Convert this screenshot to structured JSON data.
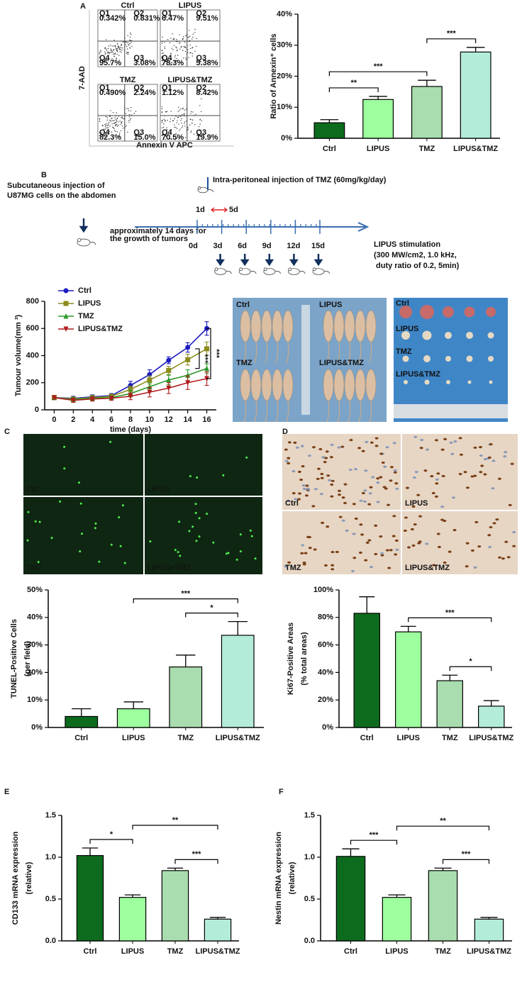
{
  "panel_labels": [
    "A",
    "B",
    "C",
    "D",
    "E",
    "F"
  ],
  "flow_cytometry": {
    "y_label": "7-AAD",
    "x_label": "Annexin V APC",
    "plots": [
      {
        "title": "Ctrl",
        "quadrants": [
          {
            "name": "Q1",
            "value": "0.342%"
          },
          {
            "name": "Q2",
            "value": "0.831%"
          },
          {
            "name": "Q4",
            "value": "95.7%"
          },
          {
            "name": "Q3",
            "value": "3.08%"
          }
        ]
      },
      {
        "title": "LIPUS",
        "quadrants": [
          {
            "name": "Q1",
            "value": "6.47%"
          },
          {
            "name": "Q2",
            "value": "9.51%"
          },
          {
            "name": "Q4",
            "value": "78.3%"
          },
          {
            "name": "Q3",
            "value": "5.38%"
          }
        ]
      },
      {
        "title": "TMZ",
        "quadrants": [
          {
            "name": "Q1",
            "value": "0.490%"
          },
          {
            "name": "Q2",
            "value": "2.24%"
          },
          {
            "name": "Q4",
            "value": "82.3%"
          },
          {
            "name": "Q3",
            "value": "15.0%"
          }
        ]
      },
      {
        "title": "LIPUS&TMZ",
        "quadrants": [
          {
            "name": "Q1",
            "value": "1.12%"
          },
          {
            "name": "Q2",
            "value": "8.42%"
          },
          {
            "name": "Q4",
            "value": "70.5%"
          },
          {
            "name": "Q3",
            "value": "19.9%"
          }
        ]
      }
    ]
  },
  "timeline": {
    "tmz_injection": "Intra-peritoneal injection of TMZ (60mg/kg/day)",
    "cell_injection": [
      "Subcutaneous injection of",
      "U87MG cells on the abdomen"
    ],
    "tmz_start": "1d",
    "tmz_end": "5d",
    "growth_note": [
      "approximately 14 days for",
      "the growth of tumors"
    ],
    "days": [
      "0d",
      "3d",
      "6d",
      "9d",
      "12d",
      "15d"
    ],
    "lipus_note": [
      "LIPUS stimulation",
      "(300 MW/cm2, 1.0 kHz,",
      "duty ratio of 0.2, 5min)"
    ]
  },
  "photos": {
    "mice_labels": [
      "Ctrl",
      "LIPUS",
      "TMZ",
      "LIPUS&TMZ"
    ],
    "tumor_labels": [
      "Ctrl",
      "LIPUS",
      "TMZ",
      "LIPUS&TMZ"
    ]
  },
  "tunel_images": [
    "Ctrl",
    "LIPUS",
    "TMZ",
    "LIPUS+TMZ"
  ],
  "ki67_images": [
    "Ctrl",
    "LIPUS",
    "TMZ",
    "LIPUS&TMZ"
  ],
  "chart_data": [
    {
      "type": "bar",
      "y_label": [
        "Ratio of Annexin⁺ cells"
      ],
      "categories": [
        "Ctrl",
        "LIPUS",
        "TMZ",
        "LIPUS&TMZ"
      ],
      "values": [
        5,
        12.5,
        16.7,
        27.8
      ],
      "errors": [
        1,
        1,
        2,
        1.5
      ],
      "colors": [
        "#0d6b1e",
        "#9dff9d",
        "#a9dcae",
        "#b3ecd9"
      ],
      "ylim": [
        0,
        40
      ],
      "yticks": [
        {
          "value": 0,
          "label": "0%"
        },
        {
          "value": 10,
          "label": "10%"
        },
        {
          "value": 20,
          "label": "20%"
        },
        {
          "value": 30,
          "label": "30%"
        },
        {
          "value": 40,
          "label": "40%"
        }
      ],
      "comparisons": [
        {
          "groups": [
            "Ctrl",
            "LIPUS"
          ],
          "label": "**"
        },
        {
          "groups": [
            "Ctrl",
            "TMZ"
          ],
          "label": "***"
        },
        {
          "groups": [
            "TMZ",
            "LIPUS&TMZ"
          ],
          "label": "***"
        }
      ]
    },
    {
      "type": "line",
      "y_label": "Tumour volume(mm ³)",
      "x_label": "time (days)",
      "x": [
        0,
        2,
        4,
        6,
        8,
        10,
        12,
        14,
        16
      ],
      "xlim": [
        -1,
        17
      ],
      "xticks": [
        0,
        2,
        4,
        6,
        8,
        10,
        12,
        14,
        16
      ],
      "ylim": [
        0,
        800
      ],
      "yticks": [
        0,
        200,
        400,
        600,
        800
      ],
      "series": [
        {
          "name": "Ctrl",
          "color": "#1c1cc0",
          "marker": "circle",
          "values": [
            90,
            85,
            95,
            105,
            180,
            260,
            365,
            460,
            600
          ],
          "errors": [
            12,
            15,
            15,
            15,
            30,
            35,
            25,
            35,
            50
          ]
        },
        {
          "name": "LIPUS",
          "color": "#8c8c1c",
          "marker": "square",
          "values": [
            90,
            80,
            90,
            100,
            150,
            220,
            290,
            370,
            450
          ],
          "errors": [
            12,
            15,
            15,
            15,
            25,
            30,
            30,
            40,
            50
          ]
        },
        {
          "name": "TMZ",
          "color": "#2a9a2a",
          "marker": "triangle",
          "values": [
            90,
            75,
            85,
            90,
            120,
            170,
            220,
            255,
            305
          ],
          "errors": [
            12,
            15,
            15,
            15,
            25,
            30,
            35,
            40,
            35
          ]
        },
        {
          "name": "LIPUS&TMZ",
          "color": "#b01c1c",
          "marker": "triangle-down",
          "values": [
            90,
            70,
            80,
            85,
            100,
            130,
            160,
            200,
            230
          ],
          "errors": [
            12,
            15,
            15,
            15,
            25,
            35,
            40,
            50,
            50
          ]
        }
      ],
      "annotations": [
        {
          "groups": [
            "Ctrl",
            "LIPUS&TMZ"
          ],
          "label": "***"
        },
        {
          "groups": [
            "LIPUS",
            "TMZ"
          ],
          "label": "***"
        }
      ]
    },
    {
      "type": "bar",
      "y_label": [
        "TUNEL-Positive Cells",
        "(per field)"
      ],
      "categories": [
        "Ctrl",
        "LIPUS",
        "TMZ",
        "LIPUS&TMZ"
      ],
      "values": [
        4,
        6.8,
        22,
        33.5
      ],
      "errors": [
        2.8,
        2.5,
        4.3,
        5
      ],
      "colors": [
        "#0d6b1e",
        "#9dff9d",
        "#a9dcae",
        "#b3ecd9"
      ],
      "ylim": [
        0,
        50
      ],
      "yticks": [
        {
          "value": 0,
          "label": "0%"
        },
        {
          "value": 10,
          "label": "10%"
        },
        {
          "value": 20,
          "label": "20%"
        },
        {
          "value": 30,
          "label": "30%"
        },
        {
          "value": 40,
          "label": "40%"
        },
        {
          "value": 50,
          "label": "50%"
        }
      ],
      "comparisons": [
        {
          "groups": [
            "TMZ",
            "LIPUS&TMZ"
          ],
          "label": "*"
        },
        {
          "groups": [
            "LIPUS",
            "LIPUS&TMZ"
          ],
          "label": "***"
        }
      ]
    },
    {
      "type": "bar",
      "y_label": [
        "Ki67-Positive Areas",
        "(% total areas)"
      ],
      "categories": [
        "Ctrl",
        "LIPUS",
        "TMZ",
        "LIPUS&TMZ"
      ],
      "values": [
        83,
        69.5,
        34,
        15.5
      ],
      "errors": [
        12,
        4,
        4,
        4
      ],
      "colors": [
        "#0d6b1e",
        "#9dff9d",
        "#a9dcae",
        "#b3ecd9"
      ],
      "ylim": [
        0,
        100
      ],
      "yticks": [
        {
          "value": 0,
          "label": "0%"
        },
        {
          "value": 20,
          "label": "20%"
        },
        {
          "value": 40,
          "label": "40%"
        },
        {
          "value": 60,
          "label": "60%"
        },
        {
          "value": 80,
          "label": "80%"
        },
        {
          "value": 100,
          "label": "100%"
        }
      ],
      "comparisons": [
        {
          "groups": [
            "TMZ",
            "LIPUS&TMZ"
          ],
          "label": "*"
        },
        {
          "groups": [
            "LIPUS",
            "LIPUS&TMZ"
          ],
          "label": "***"
        }
      ]
    },
    {
      "type": "bar",
      "y_label": [
        "CD133 mRNA expression",
        "(relative)"
      ],
      "categories": [
        "Ctrl",
        "LIPUS",
        "TMZ",
        "LIPUS&TMZ"
      ],
      "values": [
        1.02,
        0.52,
        0.84,
        0.26
      ],
      "errors": [
        0.09,
        0.03,
        0.03,
        0.02
      ],
      "colors": [
        "#0d6b1e",
        "#9dff9d",
        "#a9dcae",
        "#b3ecd9"
      ],
      "ylim": [
        0,
        1.5
      ],
      "yticks": [
        {
          "value": 0,
          "label": "0.0"
        },
        0.5,
        {
          "value": 1,
          "label": "1.0"
        },
        1.5
      ],
      "comparisons": [
        {
          "groups": [
            "Ctrl",
            "LIPUS"
          ],
          "label": "*"
        },
        {
          "groups": [
            "TMZ",
            "LIPUS&TMZ"
          ],
          "label": "***"
        },
        {
          "groups": [
            "LIPUS",
            "LIPUS&TMZ"
          ],
          "label": "**"
        }
      ]
    },
    {
      "type": "bar",
      "y_label": [
        "Nestin mRNA expression",
        "(relative)"
      ],
      "categories": [
        "Ctrl",
        "LIPUS",
        "TMZ",
        "LIPUS&TMZ"
      ],
      "values": [
        1.01,
        0.52,
        0.84,
        0.26
      ],
      "errors": [
        0.09,
        0.03,
        0.03,
        0.02
      ],
      "colors": [
        "#0d6b1e",
        "#9dff9d",
        "#a9dcae",
        "#b3ecd9"
      ],
      "ylim": [
        0,
        1.5
      ],
      "yticks": [
        {
          "value": 0,
          "label": "0.0"
        },
        0.5,
        {
          "value": 1,
          "label": "1.0"
        },
        1.5
      ],
      "comparisons": [
        {
          "groups": [
            "Ctrl",
            "LIPUS"
          ],
          "label": "***"
        },
        {
          "groups": [
            "TMZ",
            "LIPUS&TMZ"
          ],
          "label": "***"
        },
        {
          "groups": [
            "LIPUS",
            "LIPUS&TMZ"
          ],
          "label": "**"
        }
      ]
    }
  ]
}
